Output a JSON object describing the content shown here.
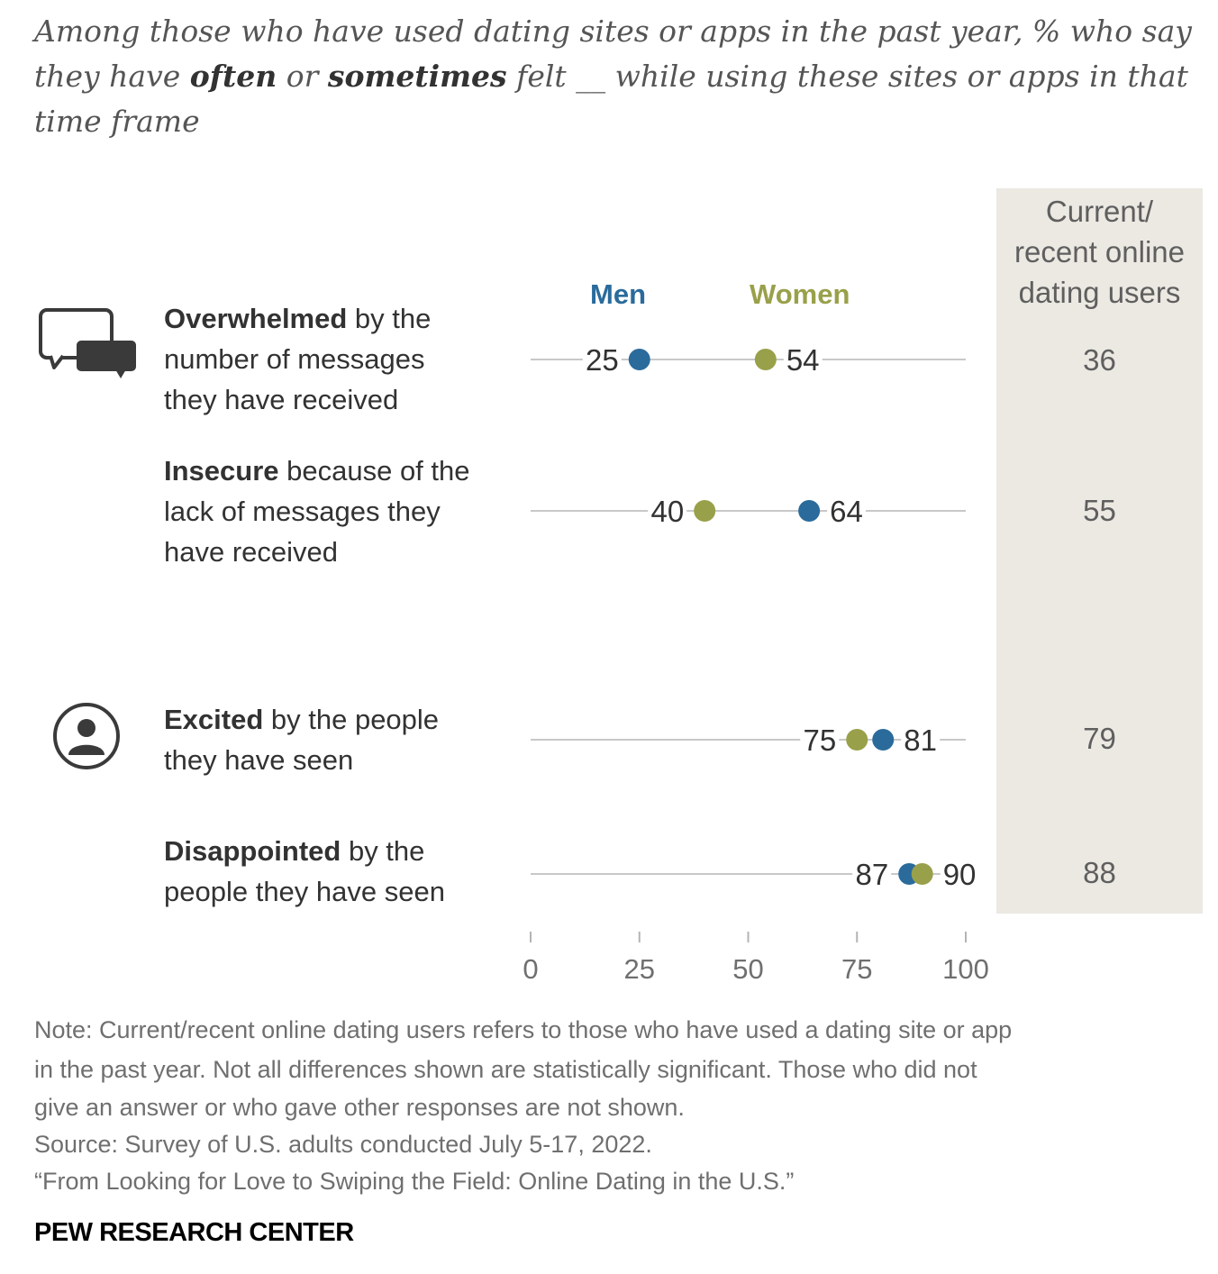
{
  "subtitle": {
    "part1": "Among those who have used dating sites or apps in the past year, % who say they have ",
    "often": "often",
    "or": " or ",
    "sometimes": "sometimes",
    "part2": " felt __ while using these sites or apps in that time frame"
  },
  "legend": {
    "men": "Men",
    "women": "Women"
  },
  "column": {
    "header_line1": "Current/",
    "header_line2": "recent online",
    "header_line3": "dating users"
  },
  "rows": [
    {
      "bold": "Overwhelmed",
      "rest": " by the number of messages they have received",
      "overall": "36"
    },
    {
      "bold": "Insecure",
      "rest": " because of the lack of messages they have received",
      "overall": "55"
    },
    {
      "bold": "Excited",
      "rest": " by the people they have seen",
      "overall": "79"
    },
    {
      "bold": "Disappointed",
      "rest": " by the people they have seen",
      "overall": "88"
    }
  ],
  "icons": {
    "group1": "chat-bubbles-icon",
    "group2": "person-icon"
  },
  "chart_data": {
    "type": "scatter",
    "subtype": "dot-plot",
    "categories": [
      "Overwhelmed by the number of messages they have received",
      "Insecure because of the lack of messages they have received",
      "Excited by the people they have seen",
      "Disappointed by the people they have seen"
    ],
    "series": [
      {
        "name": "Men",
        "color": "#2a6b9c",
        "values": [
          25,
          64,
          81,
          87
        ]
      },
      {
        "name": "Women",
        "color": "#99a04a",
        "values": [
          54,
          40,
          75,
          90
        ]
      }
    ],
    "overall_column": {
      "name": "Current/recent online dating users",
      "values": [
        36,
        55,
        79,
        88
      ]
    },
    "xlim": [
      0,
      100
    ],
    "xticks": [
      0,
      25,
      50,
      75,
      100
    ]
  },
  "note": {
    "line1": "Note: Current/recent online dating users refers to those who have used a dating site or app",
    "line2": "in the past year. Not all differences shown are statistically significant. Those who did not",
    "line3": "give an answer or who gave other responses are not shown.",
    "source": "Source: Survey of U.S. adults conducted July 5-17, 2022.",
    "report": "“From Looking for Love to Swiping the Field: Online Dating in the U.S.”"
  },
  "brand": "PEW RESEARCH CENTER"
}
